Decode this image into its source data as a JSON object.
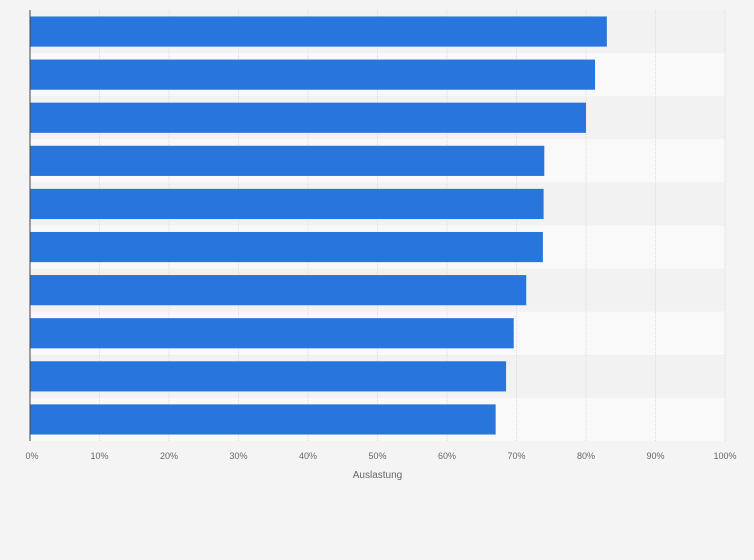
{
  "chart_data": {
    "type": "bar",
    "orientation": "horizontal",
    "categories": [
      "",
      "",
      "",
      "",
      "",
      "",
      "",
      "",
      "",
      ""
    ],
    "values": [
      83,
      81.3,
      80,
      74,
      73.9,
      73.8,
      71.4,
      69.6,
      68.5,
      67
    ],
    "value_unit": "%",
    "xlim": [
      0,
      100
    ],
    "xticks": [
      "0%",
      "10%",
      "20%",
      "30%",
      "40%",
      "50%",
      "60%",
      "70%",
      "80%",
      "90%",
      "100%"
    ],
    "xlabel": "Auslastung",
    "grid": true,
    "legend": "none",
    "colors": {
      "bar": "#2876dd",
      "band_dark": "#f2f2f2",
      "band_light": "#f9f9f9",
      "grid": "#dddddd",
      "axis": "#444444",
      "text": "#666666"
    }
  }
}
